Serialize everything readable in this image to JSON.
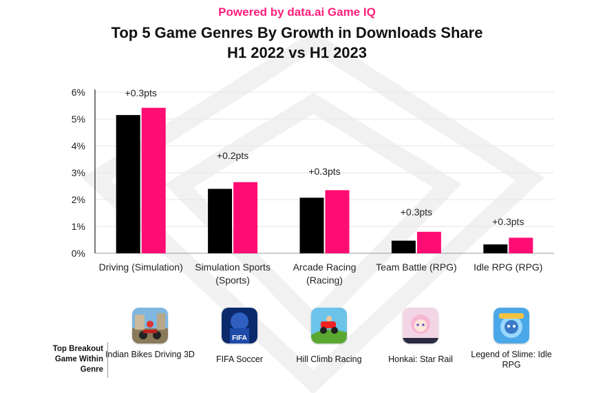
{
  "header": {
    "powered_by": "Powered by data.ai Game IQ",
    "title_line1": "Top 5 Game Genres By Growth in Downloads Share",
    "title_line2": "H1 2022 vs H1 2023"
  },
  "colors": {
    "series_2022": "#000000",
    "series_2023": "#ff0d72",
    "accent": "#ff1f7a",
    "grid": "#e6e6e6"
  },
  "chart_data": {
    "type": "bar",
    "title": "Top 5 Game Genres By Growth in Downloads Share H1 2022 vs H1 2023",
    "categories": [
      [
        "Driving (Simulation)"
      ],
      [
        "Simulation Sports",
        "(Sports)"
      ],
      [
        "Arcade Racing",
        "(Racing)"
      ],
      [
        "Team Battle (RPG)"
      ],
      [
        "Idle RPG (RPG)"
      ]
    ],
    "series": [
      {
        "values": [
          5.15,
          2.4,
          2.07,
          0.47,
          0.33
        ]
      },
      {
        "values": [
          5.42,
          2.65,
          2.35,
          0.8,
          0.58
        ]
      }
    ],
    "growth_labels": [
      "+0.3pts",
      "+0.2pts",
      "+0.3pts",
      "+0.3pts",
      "+0.3pts"
    ],
    "yticks": [
      "0%",
      "1%",
      "2%",
      "3%",
      "4%",
      "5%",
      "6%"
    ],
    "ylim": [
      0,
      6
    ],
    "grid": true,
    "legend": "none"
  },
  "breakout": {
    "label_line1": "Top Breakout",
    "label_line2": "Game Within",
    "label_line3": "Genre",
    "games": [
      {
        "name": "Indian Bikes Driving 3D",
        "icon": "indian-bikes-icon"
      },
      {
        "name": "FIFA Soccer",
        "icon": "fifa-soccer-icon",
        "icon_text": "FIFA"
      },
      {
        "name": "Hill Climb Racing",
        "icon": "hill-climb-icon"
      },
      {
        "name": "Honkai: Star Rail",
        "icon": "honkai-icon"
      },
      {
        "name": "Legend of Slime: Idle RPG",
        "icon": "legend-slime-icon"
      }
    ]
  }
}
